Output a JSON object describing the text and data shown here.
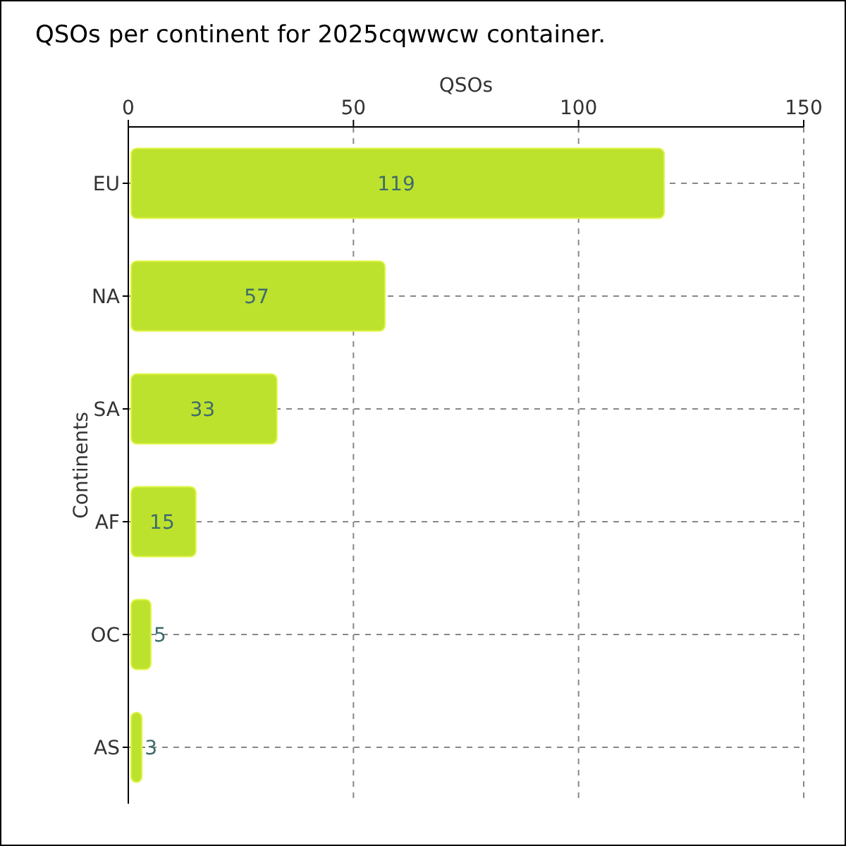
{
  "chart_data": {
    "type": "bar",
    "orientation": "horizontal",
    "title": "QSOs per continent for 2025cqwwcw container.",
    "xlabel": "QSOs",
    "ylabel": "Continents",
    "categories": [
      "EU",
      "NA",
      "SA",
      "AF",
      "OC",
      "AS"
    ],
    "values": [
      119,
      57,
      33,
      15,
      5,
      3
    ],
    "color": "#bde22e",
    "xlim": [
      0,
      150
    ],
    "xticks": [
      0,
      50,
      100,
      150
    ],
    "grid": true,
    "data_labels": true
  }
}
